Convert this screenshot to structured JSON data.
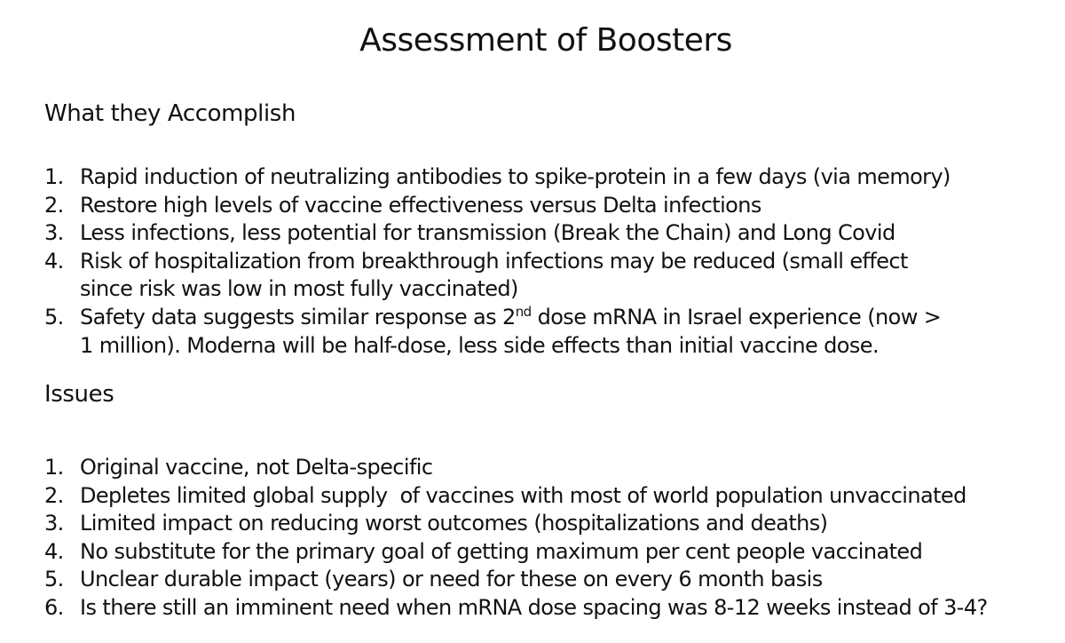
{
  "title": "Assessment of Boosters",
  "accomplish": {
    "heading": "What they Accomplish",
    "items": [
      {
        "number": "1.",
        "text": "Rapid induction of neutralizing antibodies to spike-protein in a few days (via memory)"
      },
      {
        "number": "2.",
        "text": "Restore high levels of vaccine effectiveness versus Delta infections"
      },
      {
        "number": "3.",
        "text": "Less infections, less potential for transmission (Break the Chain) and Long Covid"
      },
      {
        "number": "4.",
        "line1": "Risk of hospitalization from breakthrough infections may be reduced (small effect",
        "line2": "since risk was low in most fully vaccinated)"
      },
      {
        "number": "5.",
        "pre": "Safety data suggests similar response as 2",
        "sup": "nd",
        "post": " dose mRNA in Israel experience (now >",
        "line2": "1 million). Moderna will be half-dose, less side effects than initial vaccine dose."
      }
    ]
  },
  "issues": {
    "heading": "Issues",
    "items": [
      {
        "number": "1.",
        "text": "Original vaccine, not Delta-specific"
      },
      {
        "number": "2.",
        "text": "Depletes limited global supply  of vaccines with most of world population unvaccinated"
      },
      {
        "number": "3.",
        "text": "Limited impact on reducing worst outcomes (hospitalizations and deaths)"
      },
      {
        "number": "4.",
        "text": "No substitute for the primary goal of getting maximum per cent people vaccinated"
      },
      {
        "number": "5.",
        "text": "Unclear durable impact (years) or need for these on every 6 month basis"
      },
      {
        "number": "6.",
        "text": "Is there still an imminent need when mRNA dose spacing was 8-12 weeks instead of 3-4?"
      }
    ]
  }
}
